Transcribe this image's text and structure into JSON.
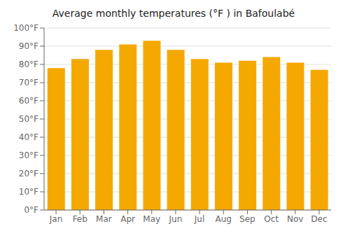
{
  "chart_data": {
    "type": "bar",
    "title": "Average monthly temperatures (°F ) in Bafoulabé",
    "categories": [
      "Jan",
      "Feb",
      "Mar",
      "Apr",
      "May",
      "Jun",
      "Jul",
      "Aug",
      "Sep",
      "Oct",
      "Nov",
      "Dec"
    ],
    "values": [
      78,
      83,
      88,
      91,
      93,
      88,
      83,
      81,
      82,
      84,
      81,
      77
    ],
    "color": "#F5A800",
    "ylim": [
      0,
      100
    ],
    "yticks": [
      {
        "value": 0,
        "label": "0°F"
      },
      {
        "value": 10,
        "label": "10°F"
      },
      {
        "value": 20,
        "label": "20°F"
      },
      {
        "value": 30,
        "label": "30°F"
      },
      {
        "value": 40,
        "label": "40°F"
      },
      {
        "value": 50,
        "label": "50°F"
      },
      {
        "value": 60,
        "label": "60°F"
      },
      {
        "value": 70,
        "label": "70°F"
      },
      {
        "value": 80,
        "label": "80°F"
      },
      {
        "value": 90,
        "label": "90°F"
      },
      {
        "value": 100,
        "label": "100°F"
      }
    ],
    "grid": true
  }
}
